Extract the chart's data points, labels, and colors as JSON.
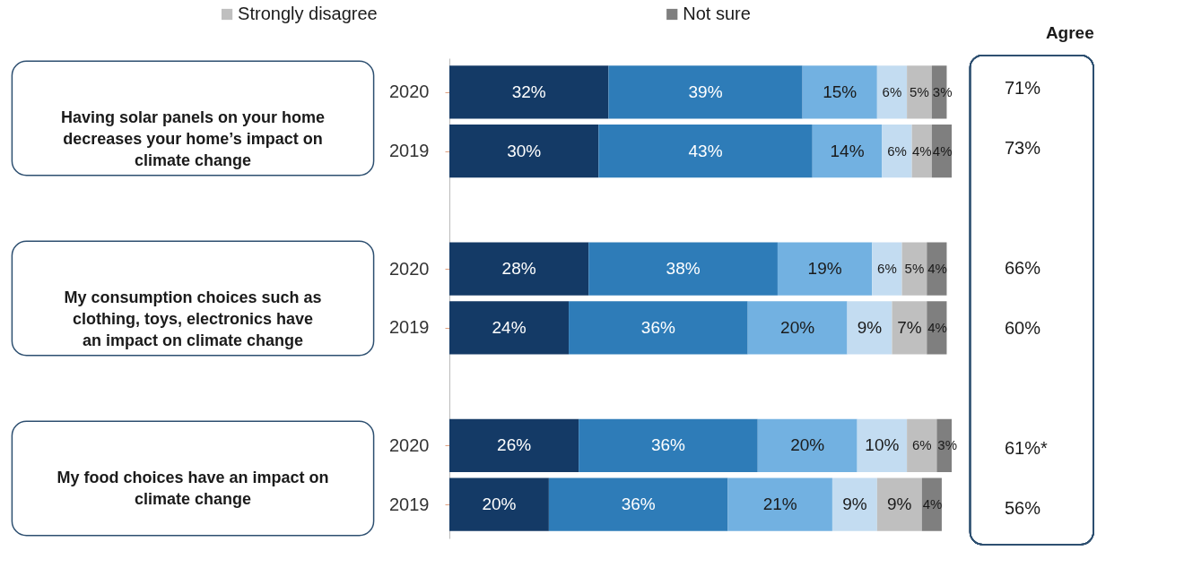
{
  "chart_data": {
    "type": "bar",
    "orientation": "horizontal",
    "stacked": true,
    "legend": "top",
    "categories": [
      "2020",
      "2019",
      "2020",
      "2019",
      "2020",
      "2019"
    ],
    "series": [
      {
        "color": "#143a66",
        "values": [
          32,
          30,
          28,
          24,
          26,
          20
        ],
        "value_labels": [
          "32%",
          "30%",
          "28%",
          "24%",
          "26%",
          "20%"
        ]
      },
      {
        "color": "#2e7cb8",
        "values": [
          39,
          43,
          38,
          36,
          36,
          36
        ],
        "value_labels": [
          "39%",
          "43%",
          "38%",
          "36%",
          "36%",
          "36%"
        ]
      },
      {
        "color": "#72b1e1",
        "values": [
          15,
          14,
          19,
          20,
          20,
          21
        ],
        "value_labels": [
          "15%",
          "14%",
          "19%",
          "20%",
          "20%",
          "21%"
        ]
      },
      {
        "color": "#c3dcf1",
        "values": [
          6,
          6,
          6,
          9,
          10,
          9
        ],
        "value_labels": [
          "6%",
          "6%",
          "6%",
          "9%",
          "10%",
          "9%"
        ]
      },
      {
        "name": "Strongly disagree",
        "color": "#bfbfbf",
        "values": [
          5,
          4,
          5,
          7,
          6,
          9
        ],
        "value_labels": [
          "5%",
          "4%",
          "5%",
          "7%",
          "6%",
          "9%"
        ]
      },
      {
        "name": "Not sure",
        "color": "#7f7f7f",
        "values": [
          3,
          4,
          4,
          4,
          3,
          4
        ],
        "value_labels": [
          "3%",
          "4%",
          "4%",
          "4%",
          "3%",
          "4%"
        ]
      }
    ],
    "annotations": [
      "Having solar panels on your home decreases your home’s impact on climate change",
      "My consumption choices such as clothing, toys, electronics have an impact on climate change",
      "My food choices have an impact on climate change",
      "Agree",
      "71%",
      "73%",
      "66%",
      "60%",
      "61%*",
      "56%"
    ]
  }
}
